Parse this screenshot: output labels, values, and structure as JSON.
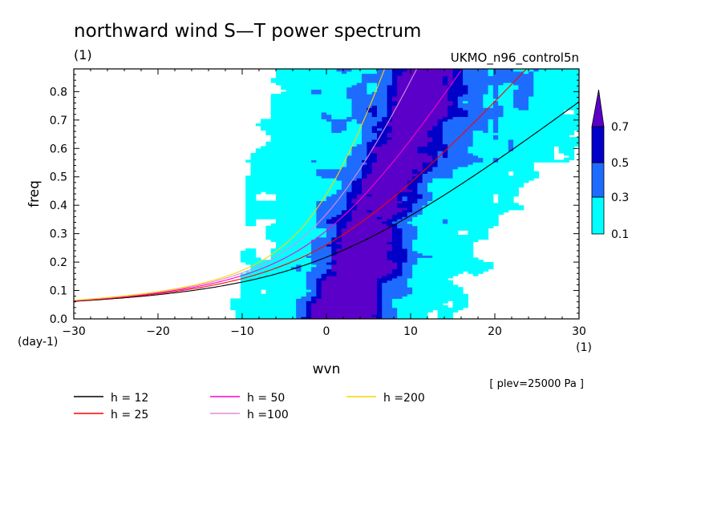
{
  "chart_data": {
    "type": "heatmap",
    "title": "northward wind S—T power spectrum",
    "units_label": "(1)",
    "dataset": "UKMO_n96_control5n",
    "xlabel": "wvn",
    "x_units": "(1)",
    "ylabel": "freq",
    "y_units": "(day-1)",
    "plev_note": "[ plev=25000 Pa ]",
    "xlim": [
      -30,
      30
    ],
    "ylim": [
      0,
      0.88
    ],
    "x_ticks": [
      "−30",
      "−20",
      "−10",
      "0",
      "10",
      "20",
      "30"
    ],
    "x_tick_values": [
      -30,
      -20,
      -10,
      0,
      10,
      20,
      30
    ],
    "y_ticks": [
      "0.0",
      "0.1",
      "0.2",
      "0.3",
      "0.4",
      "0.5",
      "0.6",
      "0.7",
      "0.8"
    ],
    "y_tick_values": [
      0,
      0.1,
      0.2,
      0.3,
      0.4,
      0.5,
      0.6,
      0.7,
      0.8
    ],
    "contour_levels": [
      0.1,
      0.3,
      0.5,
      0.7
    ],
    "colorbar_labels": [
      "0.1",
      "0.3",
      "0.5",
      "0.7"
    ],
    "colors": {
      "level_0_1": "#00ffff",
      "level_0_3": "#1e6cff",
      "level_0_5": "#0000c8",
      "level_0_7": "#5a00c8"
    },
    "power_ridge": {
      "description_points": [
        {
          "wvn": 2,
          "freq": 0.02
        },
        {
          "wvn": 3,
          "freq": 0.12
        },
        {
          "wvn": 4.5,
          "freq": 0.2
        },
        {
          "wvn": 5,
          "freq": 0.3
        },
        {
          "wvn": 6,
          "freq": 0.4
        },
        {
          "wvn": 8,
          "freq": 0.5
        },
        {
          "wvn": 10,
          "freq": 0.65
        },
        {
          "wvn": 12,
          "freq": 0.82
        }
      ]
    },
    "series": [
      {
        "name": "h = 12",
        "h": 12,
        "color": "#000000"
      },
      {
        "name": "h = 25",
        "h": 25,
        "color": "#ff0000"
      },
      {
        "name": "h = 50",
        "h": 50,
        "color": "#ff00c8"
      },
      {
        "name": "h =100",
        "h": 100,
        "color": "#e08ce0"
      },
      {
        "name": "h =200",
        "h": 200,
        "color": "#ffd200"
      }
    ]
  }
}
